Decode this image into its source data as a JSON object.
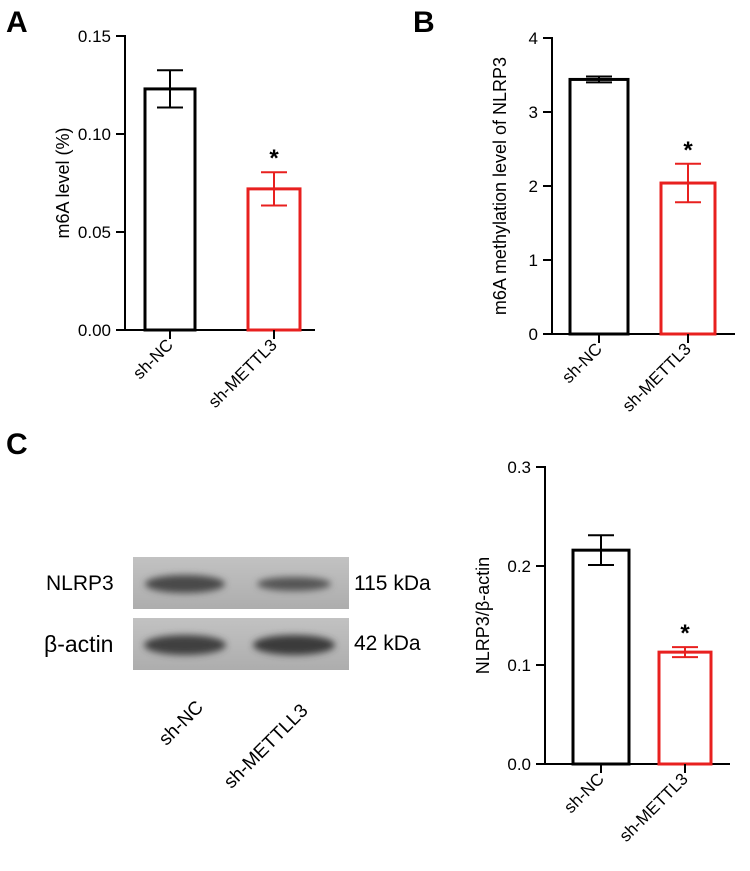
{
  "panels": {
    "a": "A",
    "b": "B",
    "c": "C"
  },
  "colors": {
    "control": "#000000",
    "knockdown": "#e8201f",
    "blot_bg": "#b4b4b4",
    "band": "#4a4a4a"
  },
  "chart_data": [
    {
      "id": "chartA",
      "type": "bar",
      "categories": [
        "sh-NC",
        "sh-METTL3"
      ],
      "values": [
        0.123,
        0.072
      ],
      "errors": [
        0.0095,
        0.0085
      ],
      "significance": [
        "",
        "*"
      ],
      "ylabel": "m6A level (%)",
      "xlabel": "",
      "ylim": [
        0,
        0.15
      ],
      "yticks": [
        0.0,
        0.05,
        0.1,
        0.15
      ],
      "ytick_labels": [
        "0.00",
        "0.05",
        "0.10",
        "0.15"
      ],
      "grid": false
    },
    {
      "id": "chartB",
      "type": "bar",
      "categories": [
        "sh-NC",
        "sh-METTL3"
      ],
      "values": [
        3.44,
        2.04
      ],
      "errors": [
        0.04,
        0.26
      ],
      "significance": [
        "",
        "*"
      ],
      "ylabel": "m6A methylation level of NLRP3",
      "xlabel": "",
      "ylim": [
        0,
        4
      ],
      "yticks": [
        0,
        1,
        2,
        3,
        4
      ],
      "ytick_labels": [
        "0",
        "1",
        "2",
        "3",
        "4"
      ],
      "grid": false
    },
    {
      "id": "chartC",
      "type": "bar",
      "categories": [
        "sh-NC",
        "sh-METTL3"
      ],
      "values": [
        0.216,
        0.113
      ],
      "errors": [
        0.015,
        0.005
      ],
      "significance": [
        "",
        "*"
      ],
      "ylabel": "NLRP3/β-actin",
      "xlabel": "",
      "ylim": [
        0,
        0.3
      ],
      "yticks": [
        0.0,
        0.1,
        0.2,
        0.3
      ],
      "ytick_labels": [
        "0.0",
        "0.1",
        "0.2",
        "0.3"
      ],
      "grid": false
    }
  ],
  "blot": {
    "rows": [
      {
        "protein": "NLRP3",
        "size": "115 kDa"
      },
      {
        "protein": "β-actin",
        "size": "42 kDa"
      }
    ],
    "lanes": [
      "sh-NC",
      "sh-METTLL3"
    ]
  }
}
